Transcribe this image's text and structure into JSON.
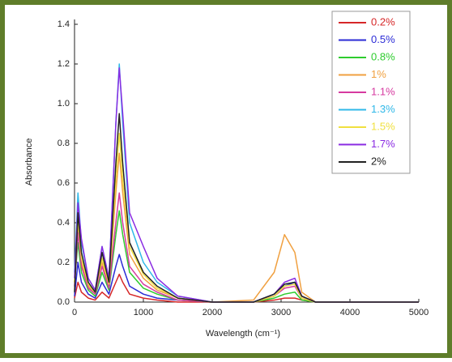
{
  "chart_data": {
    "type": "line",
    "xlabel": "Wavelength (cm⁻¹)",
    "ylabel": "Absorbance",
    "x": [
      0,
      50,
      100,
      200,
      300,
      400,
      500,
      600,
      650,
      700,
      800,
      1000,
      1200,
      1500,
      2000,
      2600,
      2900,
      3050,
      3200,
      3300,
      3500,
      5000
    ],
    "xlim": [
      0,
      5000
    ],
    "xticks": [
      0,
      1000,
      2000,
      3000,
      4000,
      5000
    ],
    "ylim": [
      0,
      1.4
    ],
    "yticks": [
      {
        "value": 0,
        "label": "0.0"
      },
      {
        "value": 0.2,
        "label": "0.2"
      },
      {
        "value": 0.4,
        "label": "0.4"
      },
      {
        "value": 0.6,
        "label": "0.6"
      },
      {
        "value": 0.8,
        "label": "0.8"
      },
      {
        "value": 1,
        "label": "1.0"
      },
      {
        "value": 1.2,
        "label": "1.2"
      },
      {
        "value": 1.4,
        "label": "1.4"
      }
    ],
    "legend": "upper right",
    "series": [
      {
        "name": "0.2%",
        "color": "#d62728",
        "values": [
          0.02,
          0.1,
          0.05,
          0.02,
          0.01,
          0.05,
          0.02,
          0.1,
          0.14,
          0.1,
          0.04,
          0.02,
          0.01,
          0,
          0,
          0,
          0.01,
          0.02,
          0.02,
          0.01,
          0,
          0
        ]
      },
      {
        "name": "0.5%",
        "color": "#2b2bd6",
        "values": [
          0.03,
          0.2,
          0.1,
          0.04,
          0.02,
          0.1,
          0.04,
          0.18,
          0.24,
          0.18,
          0.08,
          0.04,
          0.02,
          0.01,
          0,
          0,
          0.03,
          0.08,
          0.1,
          0.02,
          0,
          0
        ]
      },
      {
        "name": "0.8%",
        "color": "#2ecc2e",
        "values": [
          0.1,
          0.3,
          0.15,
          0.06,
          0.03,
          0.15,
          0.06,
          0.34,
          0.46,
          0.34,
          0.15,
          0.07,
          0.04,
          0.01,
          0,
          0,
          0.02,
          0.04,
          0.05,
          0.01,
          0,
          0
        ]
      },
      {
        "name": "1%",
        "color": "#f0a040",
        "values": [
          0.1,
          0.4,
          0.2,
          0.08,
          0.04,
          0.2,
          0.08,
          0.55,
          0.75,
          0.55,
          0.24,
          0.12,
          0.06,
          0.02,
          0,
          0.01,
          0.15,
          0.34,
          0.25,
          0.05,
          0,
          0
        ]
      },
      {
        "name": "1.1%",
        "color": "#d63aa0",
        "values": [
          0.08,
          0.35,
          0.18,
          0.07,
          0.04,
          0.18,
          0.07,
          0.4,
          0.55,
          0.4,
          0.18,
          0.09,
          0.05,
          0.01,
          0,
          0,
          0.03,
          0.07,
          0.08,
          0.02,
          0,
          0
        ]
      },
      {
        "name": "1.3%",
        "color": "#2fb8e8",
        "values": [
          0.15,
          0.55,
          0.3,
          0.12,
          0.06,
          0.28,
          0.12,
          0.9,
          1.2,
          0.9,
          0.4,
          0.2,
          0.1,
          0.03,
          0,
          0,
          0.04,
          0.09,
          0.1,
          0.03,
          0,
          0
        ]
      },
      {
        "name": "1.5%",
        "color": "#f0e040",
        "values": [
          0.1,
          0.42,
          0.22,
          0.09,
          0.05,
          0.22,
          0.09,
          0.62,
          0.85,
          0.62,
          0.28,
          0.14,
          0.07,
          0.02,
          0,
          0,
          0.03,
          0.08,
          0.09,
          0.02,
          0,
          0
        ]
      },
      {
        "name": "1.7%",
        "color": "#8a2be2",
        "values": [
          0.12,
          0.5,
          0.32,
          0.12,
          0.06,
          0.28,
          0.12,
          0.9,
          1.18,
          0.95,
          0.45,
          0.28,
          0.12,
          0.03,
          0,
          0,
          0.04,
          0.1,
          0.12,
          0.03,
          0,
          0
        ]
      },
      {
        "name": "2%",
        "color": "#222222",
        "values": [
          0.05,
          0.45,
          0.25,
          0.1,
          0.05,
          0.25,
          0.1,
          0.7,
          0.95,
          0.7,
          0.3,
          0.15,
          0.08,
          0.02,
          0,
          0,
          0.04,
          0.09,
          0.1,
          0.03,
          0,
          0
        ]
      }
    ]
  }
}
